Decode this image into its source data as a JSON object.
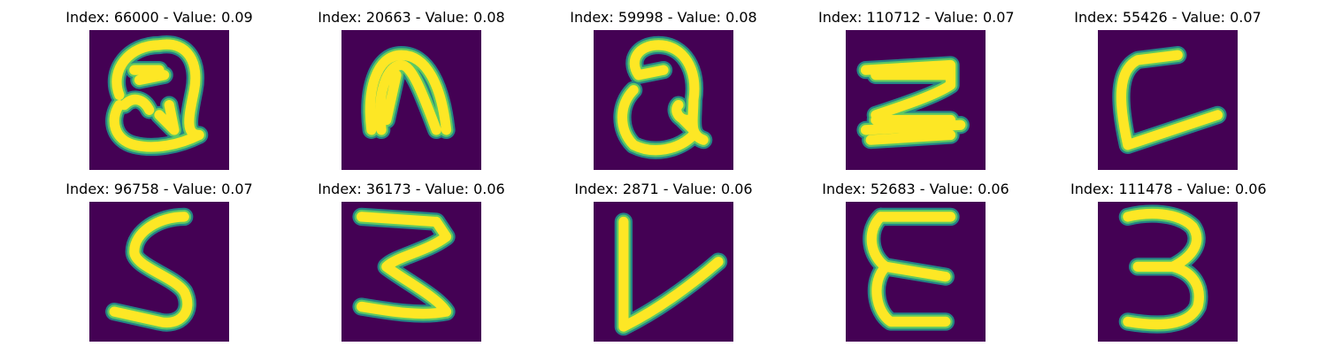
{
  "colors": {
    "background": "#440154",
    "stroke_core": "#fde725",
    "stroke_mid": "#5ec962",
    "stroke_edge": "#21918c"
  },
  "panels": [
    {
      "title": "Index: 66000 - Value: 0.09",
      "glyph": "Q"
    },
    {
      "title": "Index: 20663 - Value: 0.08",
      "glyph": "n"
    },
    {
      "title": "Index: 59998 - Value: 0.08",
      "glyph": "a"
    },
    {
      "title": "Index: 110712 - Value: 0.07",
      "glyph": "z"
    },
    {
      "title": "Index: 55426 - Value: 0.07",
      "glyph": "L"
    },
    {
      "title": "Index: 96758 - Value: 0.07",
      "glyph": "S"
    },
    {
      "title": "Index: 36173 - Value: 0.06",
      "glyph": "3"
    },
    {
      "title": "Index: 2871 - Value: 0.06",
      "glyph": "V"
    },
    {
      "title": "Index: 52683 - Value: 0.06",
      "glyph": "E"
    },
    {
      "title": "Index: 111478 - Value: 0.06",
      "glyph": "3"
    }
  ]
}
